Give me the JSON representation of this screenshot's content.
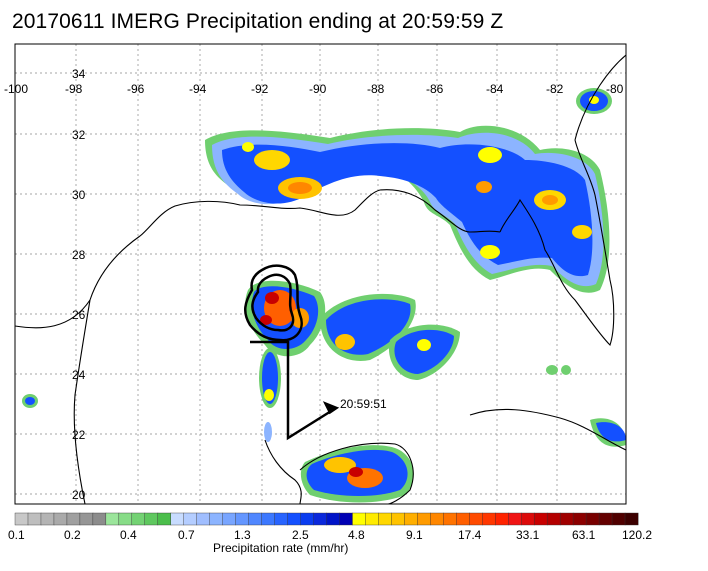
{
  "title": "20170611 IMERG Precipitation ending at 20:59:59 Z",
  "lon_ticks": [
    "-100",
    "-98",
    "-96",
    "-94",
    "-92",
    "-90",
    "-88",
    "-86",
    "-84",
    "-82",
    "-80"
  ],
  "lat_ticks": [
    "34",
    "32",
    "30",
    "28",
    "26",
    "24",
    "22",
    "20"
  ],
  "track_label": "20:59:51",
  "colorbar": {
    "title": "Precipitation rate (mm/hr)",
    "labels": [
      "0.1",
      "0.2",
      "0.4",
      "0.7",
      "1.3",
      "2.5",
      "4.8",
      "9.1",
      "17.4",
      "33.1",
      "63.1",
      "120.2"
    ],
    "colors": [
      "#c8c8c8",
      "#bebebe",
      "#b4b4b4",
      "#aaaaaa",
      "#a0a0a0",
      "#969696",
      "#8c8c8c",
      "#9be59b",
      "#87dc87",
      "#73d273",
      "#5fc85f",
      "#4bbe4b",
      "#c8dcff",
      "#b4cdff",
      "#a0beff",
      "#8cb4ff",
      "#78a5ff",
      "#6496ff",
      "#5087ff",
      "#3c78ff",
      "#2864ff",
      "#1450ff",
      "#0a3cf0",
      "#0a28dc",
      "#0014c8",
      "#0000b4",
      "#ffff00",
      "#ffeb00",
      "#ffd700",
      "#ffc300",
      "#ffaf00",
      "#ff9b00",
      "#ff8700",
      "#ff7300",
      "#ff5f00",
      "#ff4b00",
      "#ff3700",
      "#ff2300",
      "#f01414",
      "#dc0a0a",
      "#c80000",
      "#b40000",
      "#a00000",
      "#8c0000",
      "#780000",
      "#640000",
      "#500000",
      "#3c0000"
    ]
  }
}
